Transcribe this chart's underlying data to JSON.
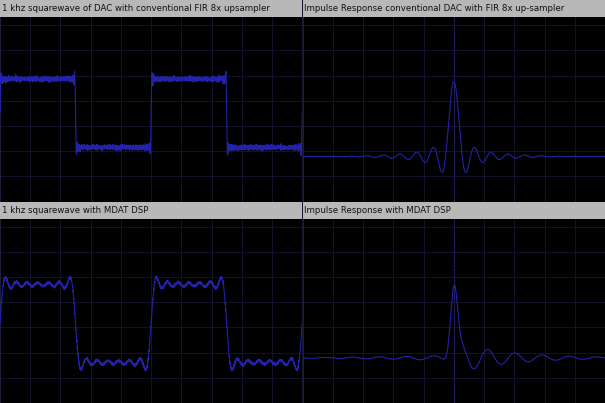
{
  "title_tl": "1 khz squarewave of DAC with conventional FIR 8x upsampler",
  "title_tr": "Impulse Response conventional DAC with FIR 8x up-sampler",
  "title_bl": "1 khz squarewave with MDAT DSP",
  "title_br": "Impulse Response with MDAT DSP",
  "bg_color": "#000000",
  "grid_color": "#1a1a3a",
  "line_color": "#2222aa",
  "title_text_color": "#111111",
  "title_bg_color": "#b8b8b8",
  "figsize": [
    6.05,
    4.03
  ],
  "dpi": 100,
  "n_vgrid": 10,
  "n_hgrid": 8
}
